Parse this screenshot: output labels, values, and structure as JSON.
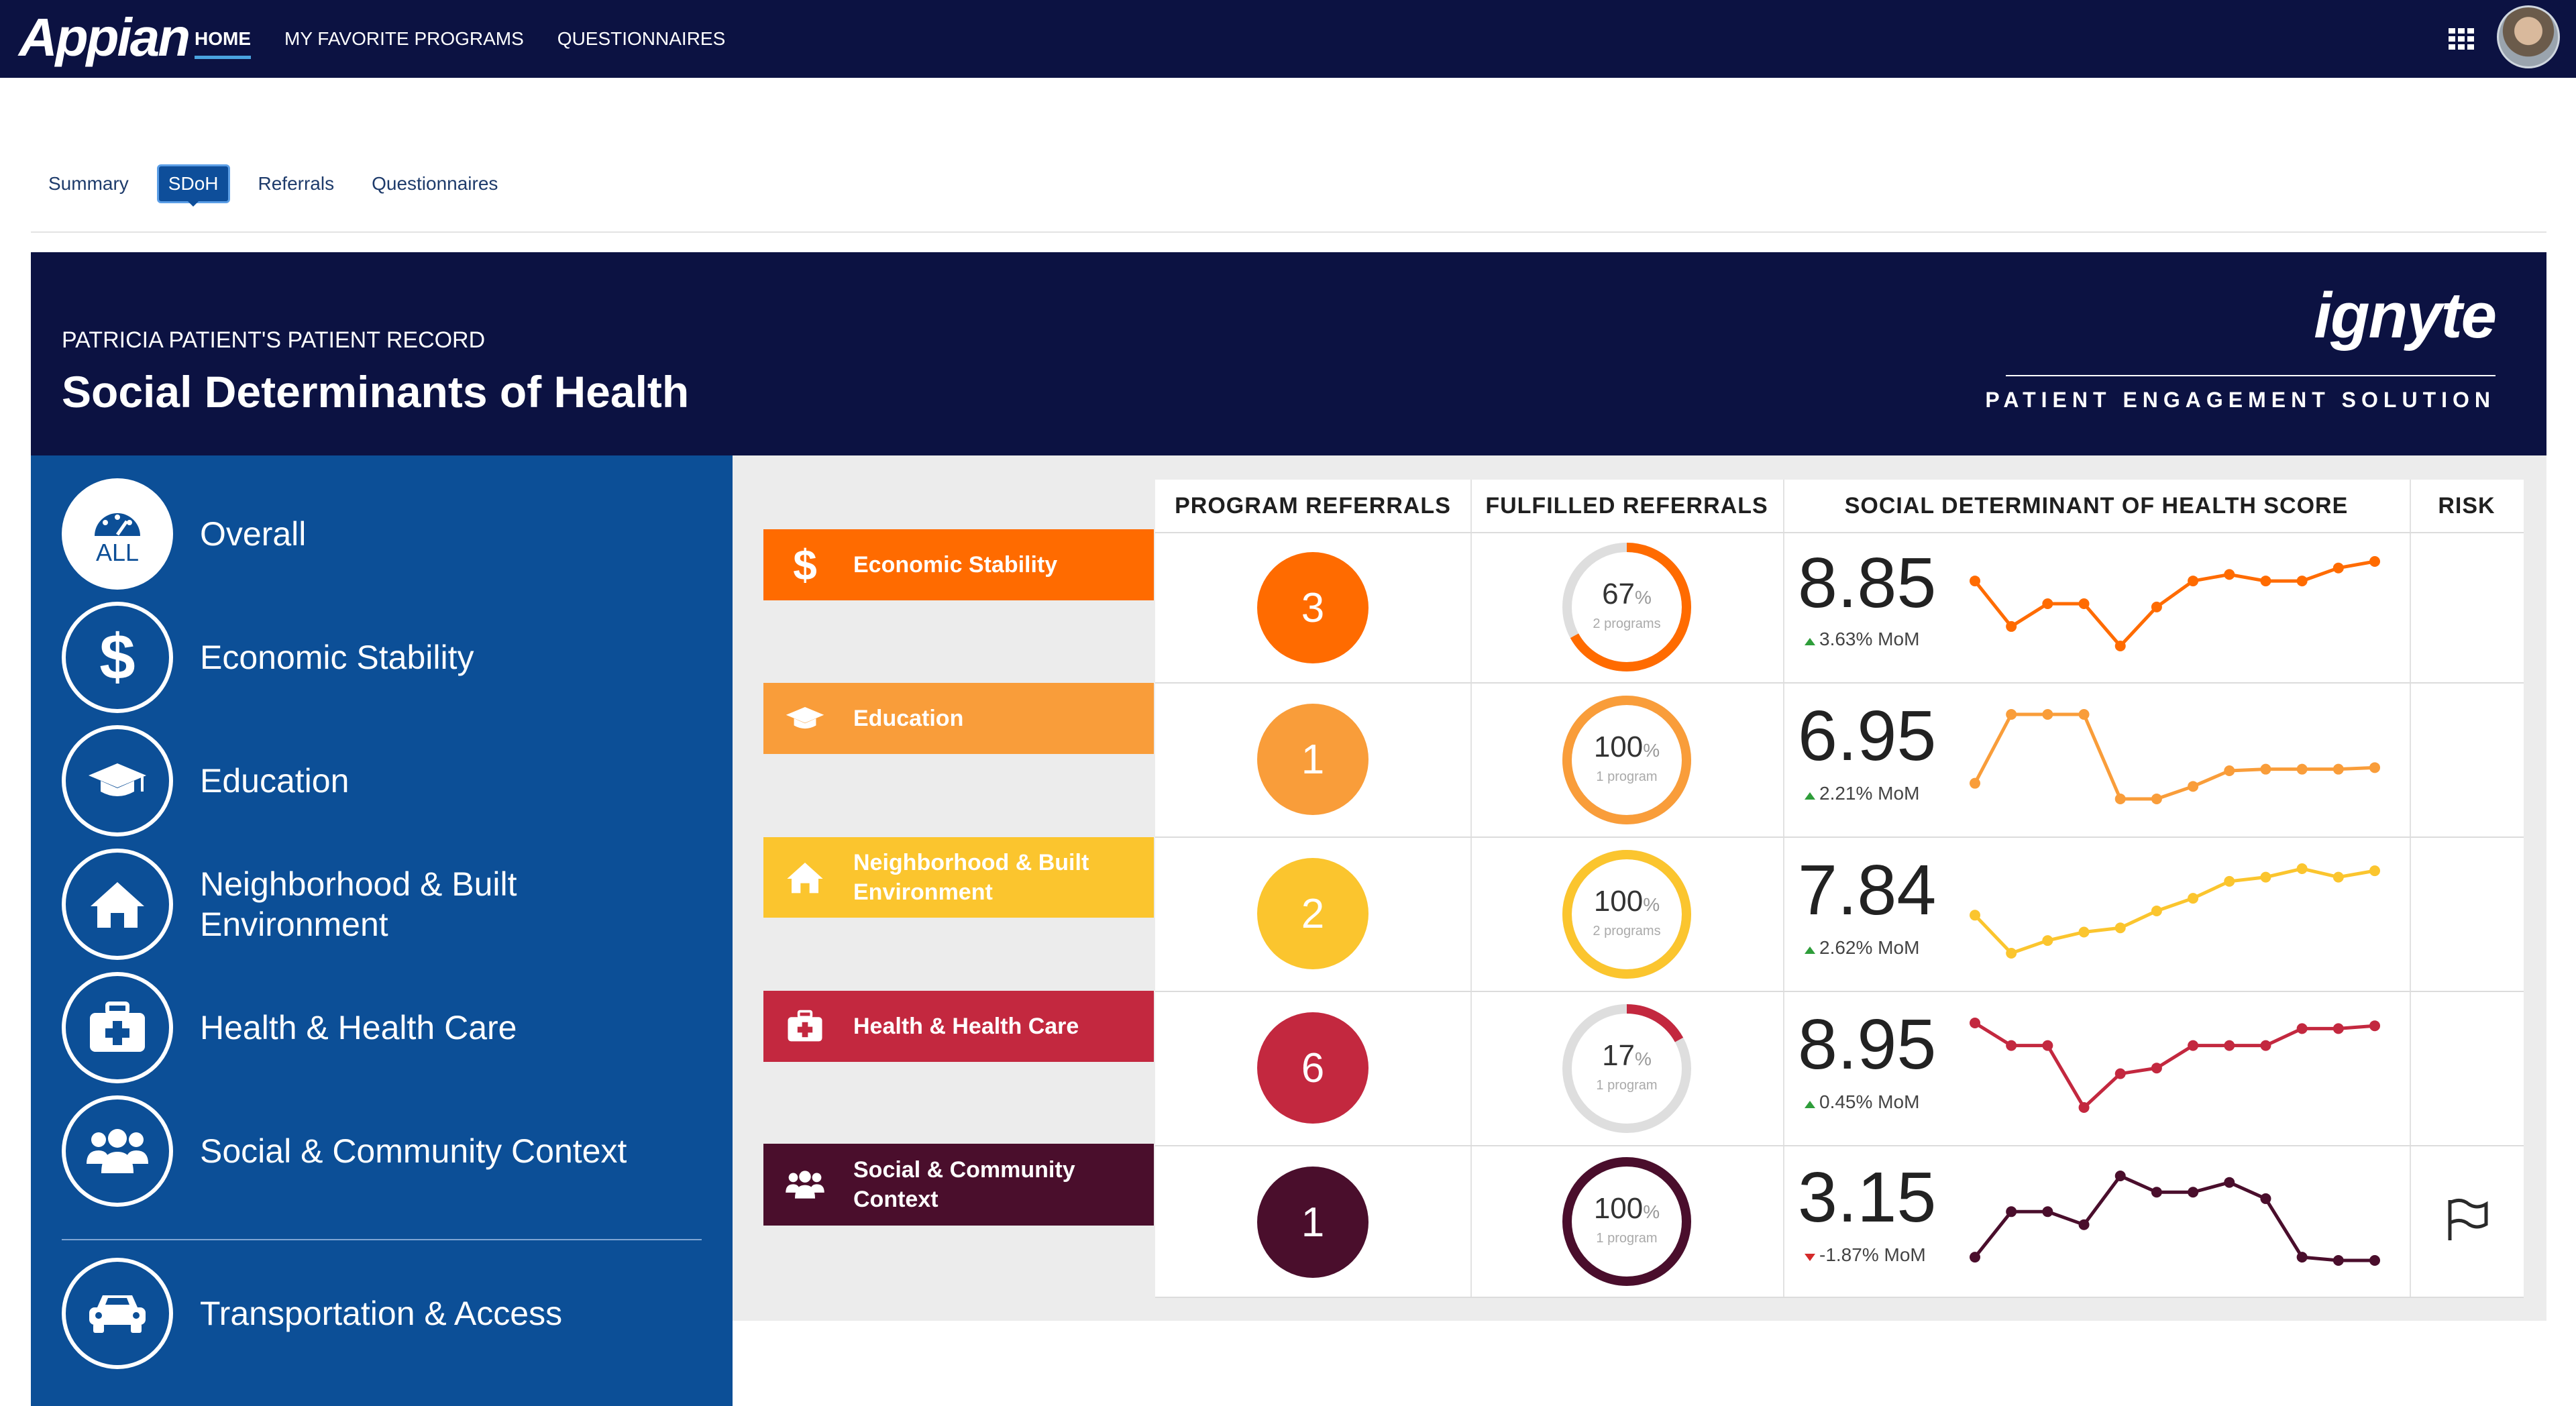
{
  "app": {
    "logo": "Appian",
    "nav": [
      "HOME",
      "MY FAVORITE PROGRAMS",
      "QUESTIONNAIRES"
    ],
    "active_nav": "HOME"
  },
  "tabs": [
    "Summary",
    "SDoH",
    "Referrals",
    "Questionnaires"
  ],
  "active_tab": "SDoH",
  "header": {
    "record_label": "PATRICIA PATIENT'S PATIENT RECORD",
    "title": "Social Determinants of Health",
    "brand": "ignyte",
    "brand_sub": "PATIENT ENGAGEMENT SOLUTION"
  },
  "sidebar": {
    "items": [
      {
        "label": "Overall",
        "icon": "gauge-icon",
        "badge": "ALL"
      },
      {
        "label": "Economic Stability",
        "icon": "dollar-icon"
      },
      {
        "label": "Education",
        "icon": "graduation-cap-icon"
      },
      {
        "label": "Neighborhood & Built Environment",
        "icon": "home-icon"
      },
      {
        "label": "Health & Health Care",
        "icon": "medical-kit-icon"
      },
      {
        "label": "Social & Community Context",
        "icon": "users-icon"
      },
      {
        "label": "Transportation & Access",
        "icon": "car-icon"
      }
    ]
  },
  "table": {
    "columns": [
      "PROGRAM REFERRALS",
      "FULFILLED REFERRALS",
      "SOCIAL DETERMINANT OF HEALTH SCORE",
      "RISK"
    ],
    "rows": [
      {
        "category": "Economic Stability",
        "icon": "dollar-icon",
        "color": "#ff6b00",
        "referrals": "3",
        "fulfilled_pct": "67",
        "fulfilled_fraction": 0.67,
        "fulfilled_sub": "2 programs",
        "score": "8.85",
        "mom": "3.63% MoM",
        "trend": "up",
        "spark": [
          8.9,
          8.2,
          8.55,
          8.55,
          7.9,
          8.5,
          8.9,
          9.0,
          8.9,
          8.9,
          9.1,
          9.2
        ],
        "risk": false
      },
      {
        "category": "Education",
        "icon": "graduation-cap-icon",
        "color": "#f99d3a",
        "referrals": "1",
        "fulfilled_pct": "100",
        "fulfilled_fraction": 1.0,
        "fulfilled_sub": "1 program",
        "score": "6.95",
        "mom": "2.21% MoM",
        "trend": "up",
        "spark": [
          6.0,
          8.2,
          8.2,
          8.2,
          5.5,
          5.5,
          5.9,
          6.4,
          6.45,
          6.45,
          6.45,
          6.5
        ],
        "risk": false
      },
      {
        "category": "Neighborhood & Built Environment",
        "icon": "home-icon",
        "color": "#fbc52e",
        "referrals": "2",
        "fulfilled_pct": "100",
        "fulfilled_fraction": 1.0,
        "fulfilled_sub": "2 programs",
        "score": "7.84",
        "mom": "2.62% MoM",
        "trend": "up",
        "spark": [
          7.5,
          6.6,
          6.9,
          7.1,
          7.2,
          7.6,
          7.9,
          8.3,
          8.4,
          8.6,
          8.4,
          8.55
        ],
        "risk": false
      },
      {
        "category": "Health & Health Care",
        "icon": "medical-kit-icon",
        "color": "#c3283f",
        "referrals": "6",
        "fulfilled_pct": "17",
        "fulfilled_fraction": 0.17,
        "fulfilled_sub": "1 program",
        "score": "8.95",
        "mom": "0.45% MoM",
        "trend": "up",
        "spark": [
          9.0,
          8.6,
          8.6,
          7.5,
          8.1,
          8.2,
          8.6,
          8.6,
          8.6,
          8.9,
          8.9,
          8.95
        ],
        "risk": false
      },
      {
        "category": "Social & Community Context",
        "icon": "users-icon",
        "color": "#4a0e2c",
        "referrals": "1",
        "fulfilled_pct": "100",
        "fulfilled_fraction": 1.0,
        "fulfilled_sub": "1 program",
        "score": "3.15",
        "mom": "-1.87% MoM",
        "trend": "down",
        "spark": [
          2.6,
          4.0,
          4.0,
          3.6,
          5.1,
          4.6,
          4.6,
          4.9,
          4.4,
          2.6,
          2.5,
          2.5
        ],
        "risk": true
      }
    ]
  },
  "colors": {
    "topbar": "#0c1242",
    "sidebar": "#0c4f97",
    "accent": "#0e4e9a",
    "up": "#2e9d3a",
    "down": "#d42a2a"
  }
}
